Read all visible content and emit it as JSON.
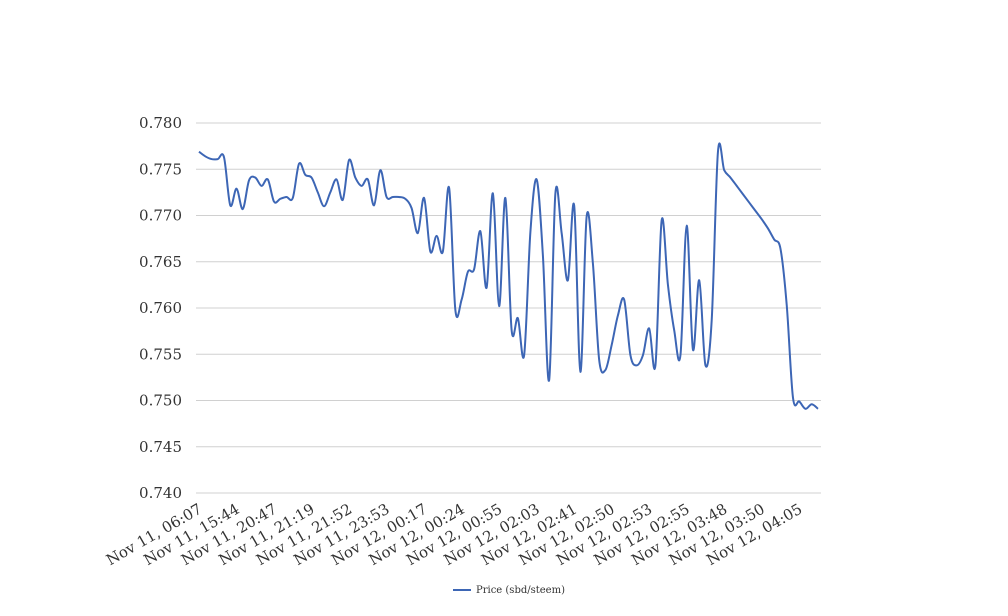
{
  "chart_data": {
    "type": "line",
    "categories": [
      "Nov 11, 06:07",
      null,
      null,
      null,
      null,
      null,
      "Nov 11, 15:44",
      null,
      null,
      null,
      null,
      null,
      "Nov 11, 20:47",
      null,
      null,
      null,
      null,
      null,
      "Nov 11, 21:19",
      null,
      null,
      null,
      null,
      null,
      "Nov 11, 21:52",
      null,
      null,
      null,
      null,
      null,
      "Nov 11, 23:53",
      null,
      null,
      null,
      null,
      null,
      "Nov 12, 00:17",
      null,
      null,
      null,
      null,
      null,
      "Nov 12, 00:24",
      null,
      null,
      null,
      null,
      null,
      "Nov 12, 00:55",
      null,
      null,
      null,
      null,
      null,
      "Nov 12, 02:03",
      null,
      null,
      null,
      null,
      null,
      "Nov 12, 02:41",
      null,
      null,
      null,
      null,
      null,
      "Nov 12, 02:50",
      null,
      null,
      null,
      null,
      null,
      "Nov 12, 02:53",
      null,
      null,
      null,
      null,
      null,
      "Nov 12, 02:55",
      null,
      null,
      null,
      null,
      null,
      "Nov 12, 03:48",
      null,
      null,
      null,
      null,
      null,
      "Nov 12, 03:50",
      null,
      null,
      null,
      null,
      null,
      "Nov 12, 04:05",
      null,
      null,
      null
    ],
    "series": [
      {
        "name": "Price (sbd/steem)",
        "color": "#3d66b5",
        "values": [
          0.7769,
          0.7764,
          0.7761,
          0.7761,
          0.7763,
          0.7711,
          0.7729,
          0.7707,
          0.7738,
          0.7741,
          0.7732,
          0.7739,
          0.7715,
          0.7718,
          0.772,
          0.7719,
          0.7756,
          0.7744,
          0.7741,
          0.7725,
          0.771,
          0.7725,
          0.7739,
          0.7717,
          0.776,
          0.7741,
          0.7732,
          0.7739,
          0.7711,
          0.7749,
          0.772,
          0.772,
          0.772,
          0.7718,
          0.7708,
          0.7681,
          0.7719,
          0.7661,
          0.7678,
          0.7661,
          0.773,
          0.7598,
          0.7609,
          0.7639,
          0.7642,
          0.7683,
          0.7622,
          0.7724,
          0.7602,
          0.7719,
          0.7576,
          0.7589,
          0.7549,
          0.7682,
          0.7739,
          0.7657,
          0.7522,
          0.7724,
          0.7681,
          0.763,
          0.7711,
          0.7531,
          0.7699,
          0.7648,
          0.7544,
          0.7533,
          0.756,
          0.7592,
          0.7609,
          0.7549,
          0.7538,
          0.7549,
          0.7578,
          0.7538,
          0.7695,
          0.7625,
          0.7576,
          0.7549,
          0.7689,
          0.7555,
          0.763,
          0.7538,
          0.7587,
          0.7769,
          0.7749,
          0.7741,
          0.7732,
          0.7723,
          0.7714,
          0.7705,
          0.7696,
          0.7686,
          0.7674,
          0.7664,
          0.7603,
          0.7503,
          0.7499,
          0.7491,
          0.7496,
          0.7491
        ]
      }
    ],
    "ylim": [
      0.74,
      0.78
    ],
    "yticks": [
      {
        "value": 0.74,
        "label": "0.740"
      },
      0.745,
      {
        "value": 0.75,
        "label": "0.750"
      },
      0.755,
      {
        "value": 0.76,
        "label": "0.760"
      },
      0.765,
      {
        "value": 0.77,
        "label": "0.770"
      },
      0.775,
      {
        "value": 0.78,
        "label": "0.780"
      }
    ],
    "grid": true,
    "legend": "bottom"
  }
}
